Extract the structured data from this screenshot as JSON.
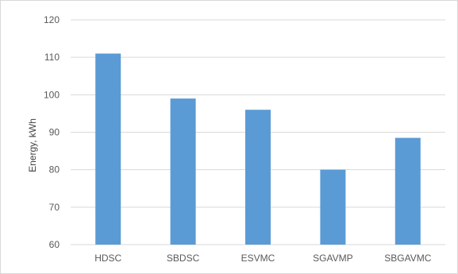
{
  "chart_data": {
    "type": "bar",
    "categories": [
      "HDSC",
      "SBDSC",
      "ESVMC",
      "SGAVMP",
      "SBGAVMC"
    ],
    "values": [
      111,
      99,
      96,
      80,
      88.5
    ],
    "title": "",
    "xlabel": "",
    "ylabel": "Energy, kWh",
    "ylim": [
      60,
      120
    ],
    "yticks": [
      "60",
      "70",
      "80",
      "90",
      "100",
      "110",
      "120"
    ],
    "grid": true,
    "legend": "none",
    "colors": {
      "bar": "#5b9bd5",
      "grid": "#d9d9d9",
      "tick_text": "#595959"
    }
  }
}
